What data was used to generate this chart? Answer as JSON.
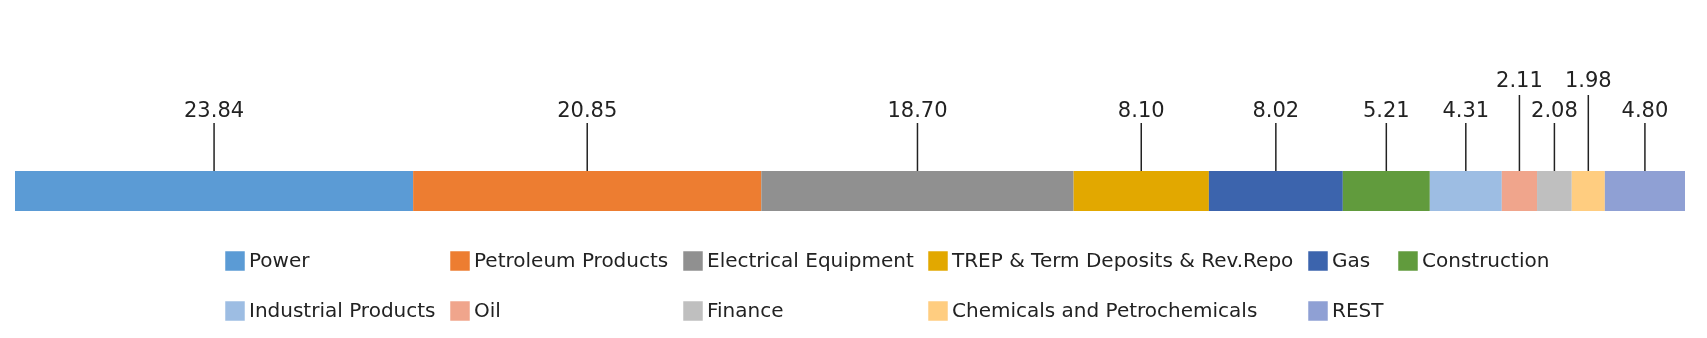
{
  "chart_data": {
    "type": "bar",
    "orientation": "horizontal",
    "stacked": true,
    "categories": [
      null
    ],
    "legend": "bottom",
    "series": [
      {
        "name": "Power",
        "color": "#5b9bd5",
        "values": [
          23.84
        ],
        "value_labels": [
          "23.84"
        ]
      },
      {
        "name": "Petroleum Products",
        "color": "#ed7d31",
        "values": [
          20.85
        ],
        "value_labels": [
          "20.85"
        ]
      },
      {
        "name": "Electrical Equipment",
        "color": "#909090",
        "values": [
          18.7
        ],
        "value_labels": [
          "18.70"
        ]
      },
      {
        "name": "TREP & Term Deposits & Rev.Repo",
        "color": "#e2a800",
        "values": [
          8.1
        ],
        "value_labels": [
          "8.10"
        ]
      },
      {
        "name": "Gas",
        "color": "#3c64ad",
        "values": [
          8.02
        ],
        "value_labels": [
          "8.02"
        ]
      },
      {
        "name": "Construction",
        "color": "#619b3d",
        "values": [
          5.21
        ],
        "value_labels": [
          "5.21"
        ]
      },
      {
        "name": "Industrial Products",
        "color": "#9dbde3",
        "values": [
          4.31
        ],
        "value_labels": [
          "4.31"
        ]
      },
      {
        "name": "Oil",
        "color": "#f0a58c",
        "values": [
          2.11
        ],
        "value_labels": [
          "2.11"
        ]
      },
      {
        "name": "Finance",
        "color": "#bfbfbf",
        "values": [
          2.08
        ],
        "value_labels": [
          "2.08"
        ]
      },
      {
        "name": "Chemicals and Petrochemicals",
        "color": "#ffcd80",
        "values": [
          1.98
        ],
        "value_labels": [
          "1.98"
        ]
      },
      {
        "name": "REST",
        "color": "#8fa0d4",
        "values": [
          4.8
        ],
        "value_labels": [
          "4.80"
        ]
      }
    ]
  }
}
